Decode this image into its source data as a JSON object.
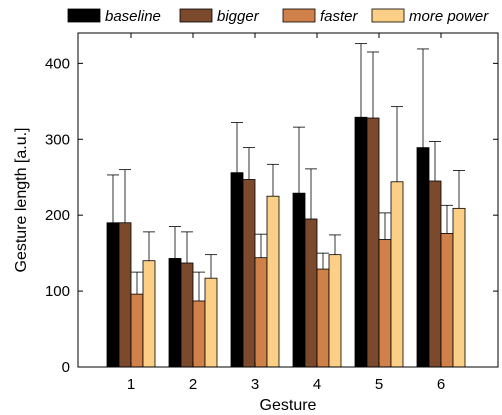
{
  "chart_data": {
    "type": "bar",
    "categories": [
      "1",
      "2",
      "3",
      "4",
      "5",
      "6"
    ],
    "series": [
      {
        "name": "baseline",
        "color": "#000000",
        "values": [
          190,
          143,
          256,
          229,
          329,
          289
        ],
        "errors": [
          63,
          42,
          66,
          87,
          97,
          130
        ]
      },
      {
        "name": "bigger",
        "color": "#7b4a2d",
        "values": [
          190,
          137,
          247,
          195,
          328,
          245
        ],
        "errors": [
          70,
          41,
          42,
          66,
          87,
          52
        ]
      },
      {
        "name": "faster",
        "color": "#d0814a",
        "values": [
          96,
          87,
          144,
          129,
          168,
          176
        ],
        "errors": [
          29,
          38,
          31,
          21,
          35,
          37
        ]
      },
      {
        "name": "more power",
        "color": "#fccf87",
        "values": [
          140,
          117,
          225,
          148,
          244,
          209
        ],
        "errors": [
          38,
          31,
          42,
          26,
          99,
          50
        ]
      }
    ],
    "xlabel": "Gesture",
    "ylabel": "Gesture length [a.u.]",
    "yticks": [
      "0",
      "100",
      "200",
      "300",
      "400"
    ],
    "ylim": [
      0,
      440
    ],
    "grid": false,
    "legend_position": "top"
  }
}
